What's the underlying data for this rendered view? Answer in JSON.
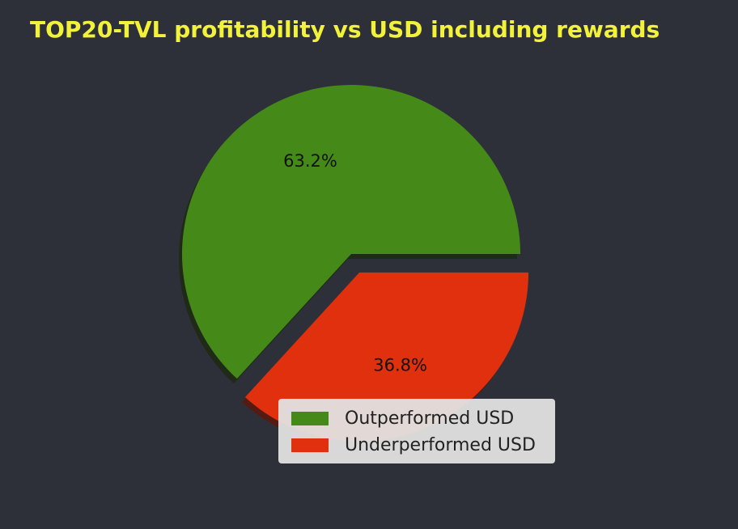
{
  "chart_data": {
    "type": "pie",
    "title": "TOP20-TVL profitability vs USD including rewards",
    "slices": [
      {
        "label": "Outperformed USD",
        "value": 63.2,
        "pct_label": "63.2%",
        "color": "#458a18"
      },
      {
        "label": "Underperformed USD",
        "value": 36.8,
        "pct_label": "36.8%",
        "color": "#e0300e"
      }
    ],
    "legend_position": "lower-right",
    "shadow": true,
    "explode": [
      0,
      1
    ]
  },
  "colors": {
    "background": "#2e3039",
    "title": "#f2f23a",
    "shadow": "#1e2a14"
  }
}
